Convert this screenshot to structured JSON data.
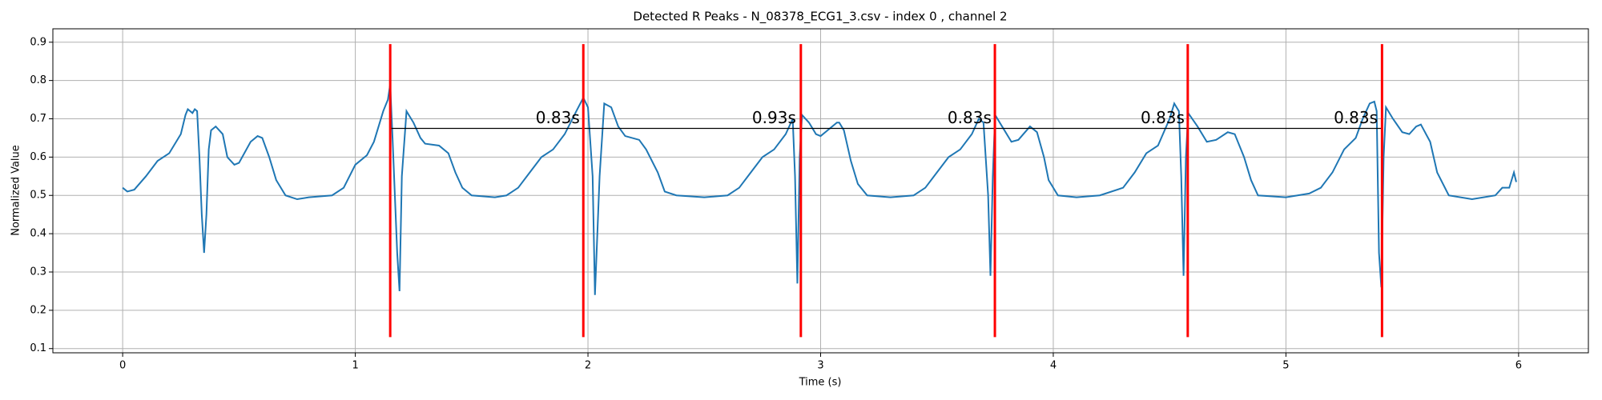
{
  "chart_data": {
    "type": "line",
    "title": "Detected R Peaks - N_08378_ECG1_3.csv - index 0 , channel 2",
    "xlabel": "Time (s)",
    "ylabel": "Normalized Value",
    "xlim": [
      -0.3,
      6.3
    ],
    "ylim": [
      0.089,
      0.935
    ],
    "xticks": [
      0,
      1,
      2,
      3,
      4,
      5,
      6
    ],
    "yticks": [
      0.1,
      0.2,
      0.3,
      0.4,
      0.5,
      0.6,
      0.7,
      0.8,
      0.9
    ],
    "grid": true,
    "x": [
      0,
      0.02,
      0.05,
      0.1,
      0.15,
      0.2,
      0.25,
      0.27,
      0.28,
      0.3,
      0.31,
      0.32,
      0.33,
      0.34,
      0.35,
      0.36,
      0.37,
      0.38,
      0.4,
      0.43,
      0.45,
      0.48,
      0.5,
      0.55,
      0.58,
      0.6,
      0.63,
      0.66,
      0.7,
      0.75,
      0.8,
      0.9,
      0.95,
      1.0,
      1.05,
      1.08,
      1.12,
      1.14,
      1.15,
      1.16,
      1.18,
      1.19,
      1.2,
      1.22,
      1.25,
      1.28,
      1.3,
      1.36,
      1.4,
      1.43,
      1.46,
      1.5,
      1.6,
      1.65,
      1.7,
      1.75,
      1.8,
      1.85,
      1.9,
      1.95,
      1.98,
      2.0,
      2.02,
      2.03,
      2.05,
      2.07,
      2.1,
      2.13,
      2.16,
      2.22,
      2.25,
      2.3,
      2.33,
      2.38,
      2.5,
      2.6,
      2.65,
      2.7,
      2.75,
      2.8,
      2.85,
      2.88,
      2.89,
      2.9,
      2.91,
      2.92,
      2.95,
      2.98,
      3.0,
      3.03,
      3.07,
      3.08,
      3.1,
      3.13,
      3.16,
      3.2,
      3.3,
      3.4,
      3.45,
      3.5,
      3.55,
      3.6,
      3.65,
      3.68,
      3.7,
      3.72,
      3.73,
      3.74,
      3.75,
      3.78,
      3.82,
      3.85,
      3.9,
      3.93,
      3.96,
      3.98,
      4.02,
      4.1,
      4.2,
      4.3,
      4.35,
      4.4,
      4.45,
      4.5,
      4.52,
      4.54,
      4.55,
      4.56,
      4.57,
      4.58,
      4.62,
      4.66,
      4.7,
      4.75,
      4.78,
      4.82,
      4.85,
      4.88,
      5.0,
      5.1,
      5.15,
      5.2,
      5.25,
      5.3,
      5.33,
      5.36,
      5.38,
      5.39,
      5.4,
      5.41,
      5.42,
      5.43,
      5.46,
      5.5,
      5.53,
      5.56,
      5.58,
      5.62,
      5.65,
      5.7,
      5.8,
      5.9,
      5.93,
      5.96,
      5.98,
      5.99
    ],
    "series": [
      {
        "color": "#1f77b4",
        "values": [
          0.52,
          0.51,
          0.515,
          0.55,
          0.59,
          0.61,
          0.66,
          0.71,
          0.725,
          0.715,
          0.725,
          0.72,
          0.6,
          0.45,
          0.35,
          0.45,
          0.62,
          0.67,
          0.68,
          0.66,
          0.6,
          0.58,
          0.585,
          0.64,
          0.655,
          0.65,
          0.6,
          0.54,
          0.5,
          0.49,
          0.495,
          0.5,
          0.52,
          0.58,
          0.605,
          0.64,
          0.72,
          0.75,
          0.79,
          0.65,
          0.35,
          0.25,
          0.55,
          0.72,
          0.69,
          0.65,
          0.635,
          0.63,
          0.61,
          0.56,
          0.52,
          0.5,
          0.495,
          0.5,
          0.52,
          0.56,
          0.6,
          0.62,
          0.66,
          0.72,
          0.755,
          0.73,
          0.55,
          0.24,
          0.55,
          0.74,
          0.73,
          0.68,
          0.655,
          0.645,
          0.62,
          0.56,
          0.51,
          0.5,
          0.495,
          0.5,
          0.52,
          0.56,
          0.6,
          0.62,
          0.66,
          0.7,
          0.55,
          0.27,
          0.6,
          0.71,
          0.69,
          0.66,
          0.655,
          0.67,
          0.69,
          0.69,
          0.67,
          0.59,
          0.53,
          0.5,
          0.495,
          0.5,
          0.52,
          0.56,
          0.6,
          0.62,
          0.66,
          0.7,
          0.69,
          0.5,
          0.29,
          0.55,
          0.71,
          0.68,
          0.64,
          0.645,
          0.68,
          0.665,
          0.6,
          0.54,
          0.5,
          0.495,
          0.5,
          0.52,
          0.56,
          0.61,
          0.63,
          0.7,
          0.74,
          0.72,
          0.55,
          0.29,
          0.6,
          0.715,
          0.68,
          0.64,
          0.645,
          0.665,
          0.66,
          0.6,
          0.54,
          0.5,
          0.495,
          0.505,
          0.52,
          0.56,
          0.62,
          0.65,
          0.7,
          0.74,
          0.745,
          0.72,
          0.35,
          0.26,
          0.6,
          0.73,
          0.7,
          0.665,
          0.66,
          0.68,
          0.685,
          0.64,
          0.56,
          0.5,
          0.49,
          0.5,
          0.52,
          0.52,
          0.56,
          0.535
        ]
      }
    ],
    "peak_color": "#ff0000",
    "peaks": [
      1.15,
      1.98,
      2.915,
      3.749,
      4.578,
      5.413
    ],
    "peak_range": [
      0.13,
      0.895
    ],
    "interval_line_y": 0.675,
    "annotations": [
      {
        "text": "0.83s",
        "x": 1.87,
        "y": 0.7
      },
      {
        "text": "0.93s",
        "x": 2.8,
        "y": 0.7
      },
      {
        "text": "0.83s",
        "x": 3.64,
        "y": 0.7
      },
      {
        "text": "0.83s",
        "x": 4.47,
        "y": 0.7
      },
      {
        "text": "0.83s",
        "x": 5.3,
        "y": 0.7
      }
    ]
  }
}
